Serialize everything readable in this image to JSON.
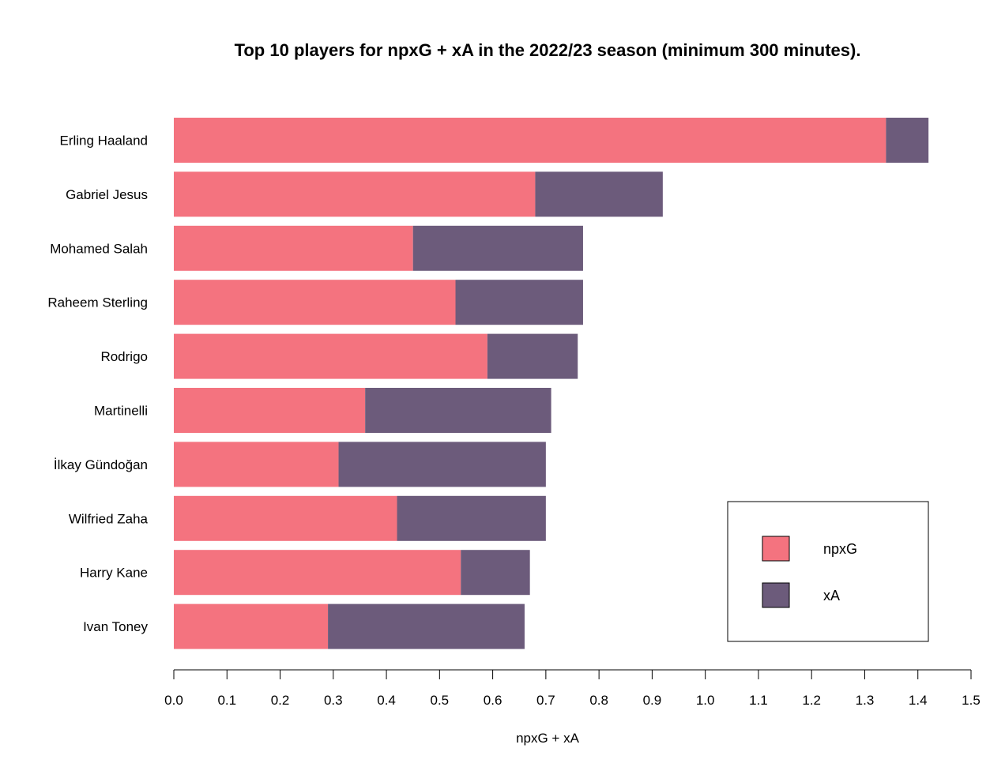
{
  "chart_data": {
    "type": "bar",
    "orientation": "horizontal",
    "stacked": true,
    "title": "Top 10 players for npxG + xA in the 2022/23 season (minimum 300 minutes).",
    "xlabel": "npxG + xA",
    "ylabel": "",
    "xlim": [
      0,
      1.5
    ],
    "xticks": [
      "0.0",
      "0.1",
      "0.2",
      "0.3",
      "0.4",
      "0.5",
      "0.6",
      "0.7",
      "0.8",
      "0.9",
      "1.0",
      "1.1",
      "1.2",
      "1.3",
      "1.4",
      "1.5"
    ],
    "grid": false,
    "legend_position": "bottom-right",
    "categories": [
      "Erling Haaland",
      "Gabriel Jesus",
      "Mohamed Salah",
      "Raheem Sterling",
      "Rodrigo",
      "Martinelli",
      "İlkay Gündoğan",
      "Wilfried Zaha",
      "Harry Kane",
      "Ivan Toney"
    ],
    "series": [
      {
        "name": "npxG",
        "color": "#f4737f",
        "values": [
          1.34,
          0.68,
          0.45,
          0.53,
          0.59,
          0.36,
          0.31,
          0.42,
          0.54,
          0.29
        ]
      },
      {
        "name": "xA",
        "color": "#6c5b7b",
        "values": [
          0.08,
          0.24,
          0.32,
          0.24,
          0.17,
          0.35,
          0.39,
          0.28,
          0.13,
          0.37
        ]
      }
    ]
  }
}
